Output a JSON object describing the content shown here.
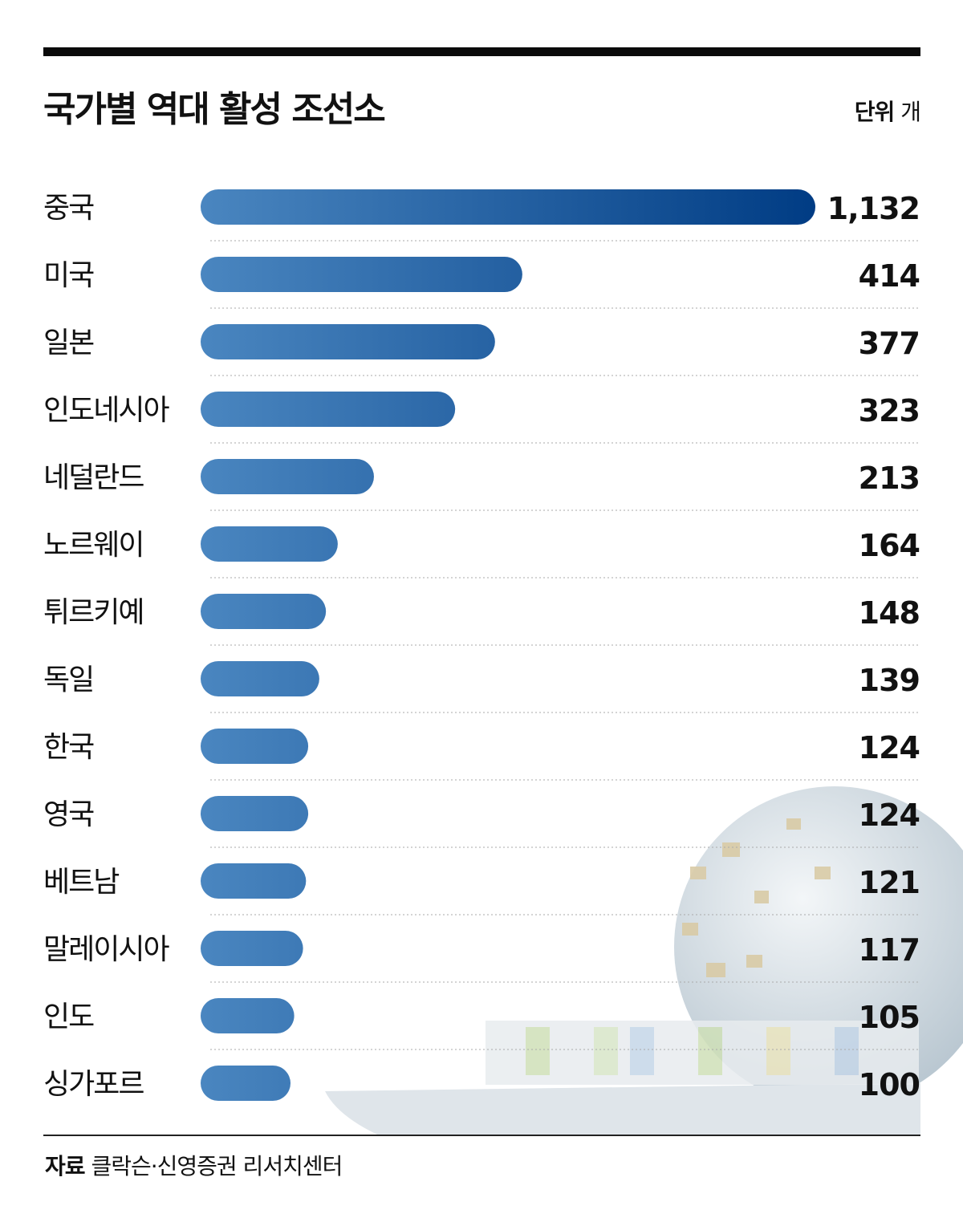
{
  "header": {
    "title": "국가별 역대 활성 조선소",
    "unit_label": "단위",
    "unit_value": "개"
  },
  "footer": {
    "source_label": "자료",
    "source_text": "클락슨·신영증권 리서치센터"
  },
  "colors": {
    "bar_start": "#4a86c0",
    "bar_end": "#003c84",
    "text": "#111111"
  },
  "chart_data": {
    "type": "bar",
    "orientation": "horizontal",
    "title": "국가별 역대 활성 조선소",
    "unit": "개",
    "categories": [
      "중국",
      "미국",
      "일본",
      "인도네시아",
      "네덜란드",
      "노르웨이",
      "튀르키예",
      "독일",
      "한국",
      "영국",
      "베트남",
      "말레이시아",
      "인도",
      "싱가포르"
    ],
    "values": [
      1132,
      414,
      377,
      323,
      213,
      164,
      148,
      139,
      124,
      124,
      121,
      117,
      105,
      100
    ],
    "value_labels": [
      "1,132",
      "414",
      "377",
      "323",
      "213",
      "164",
      "148",
      "139",
      "124",
      "124",
      "121",
      "117",
      "105",
      "100"
    ],
    "grid": false,
    "legend": "none"
  }
}
